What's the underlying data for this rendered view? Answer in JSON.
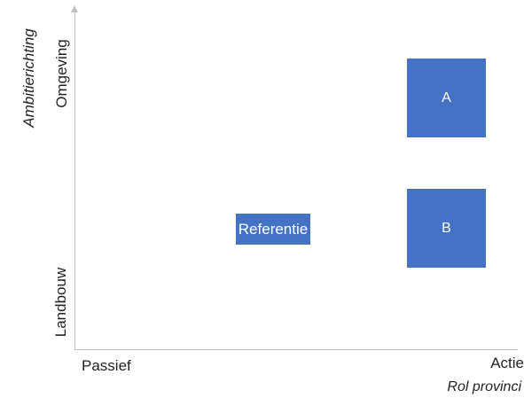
{
  "y_axis": {
    "title": "Ambitierichting",
    "high_label": "Omgeving",
    "low_label": "Landbouw"
  },
  "x_axis": {
    "title": "Rol provinci",
    "low_label": "Passief",
    "high_label": "Actie"
  },
  "boxes": {
    "a": "A",
    "b": "B",
    "referentie": "Referentie"
  },
  "colors": {
    "box_fill": "#4472c4",
    "axis": "#bfbfbf"
  }
}
